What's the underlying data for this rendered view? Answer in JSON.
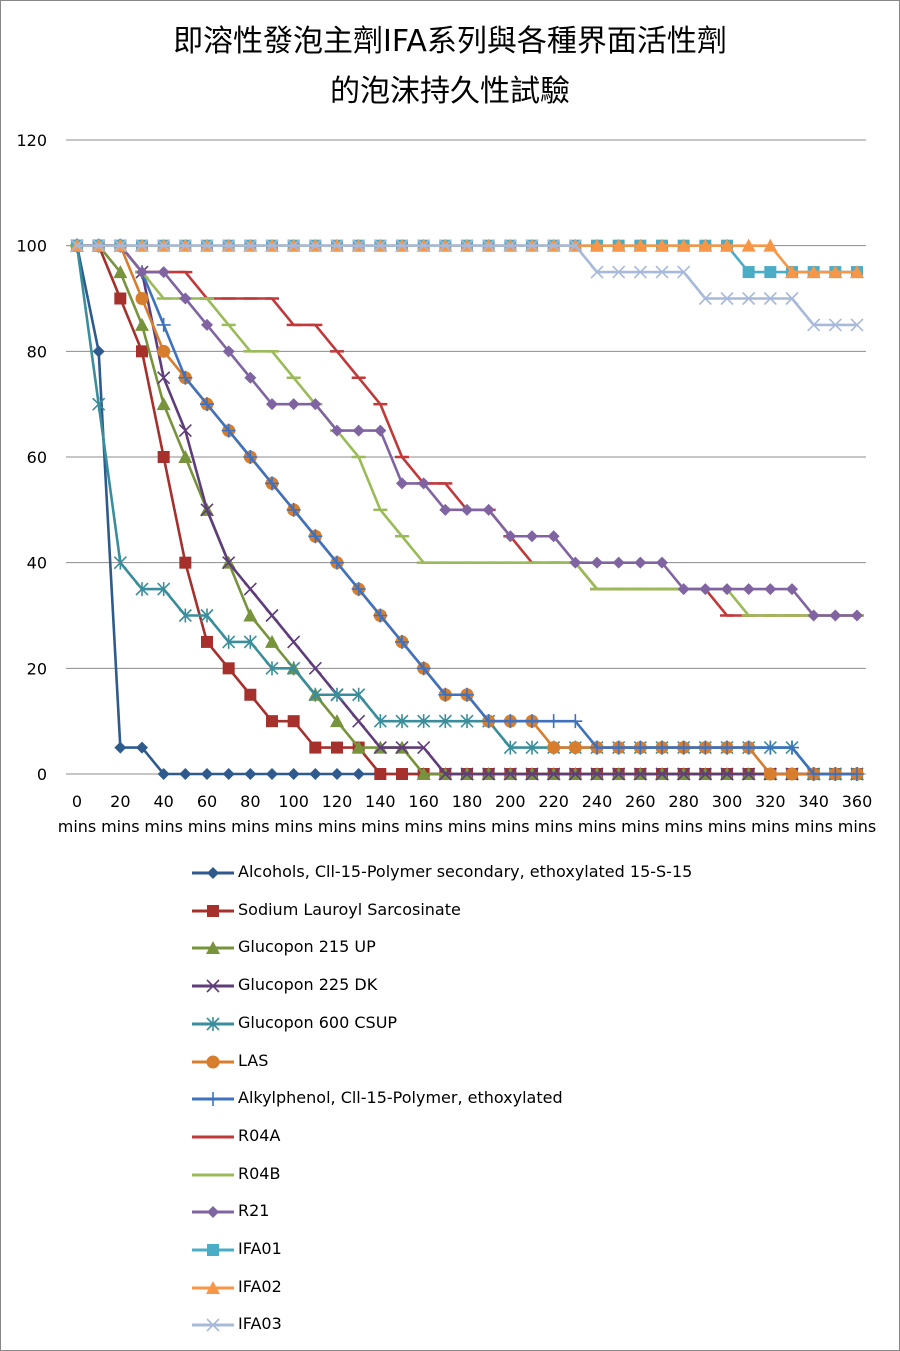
{
  "title_line1": "即溶性發泡主劑IFA系列與各種界面活性劑",
  "title_line2": "的泡沫持久性試驗",
  "chart_data": {
    "type": "line",
    "title": "即溶性發泡主劑IFA系列與各種界面活性劑的泡沫持久性試驗",
    "xlabel": "",
    "ylabel": "",
    "ylim": [
      0,
      120
    ],
    "yticks": [
      0,
      20,
      40,
      60,
      80,
      100,
      120
    ],
    "ytick_labels": [
      "0",
      "20",
      "40",
      "60",
      "80",
      "100",
      "120"
    ],
    "x": [
      0,
      10,
      20,
      30,
      40,
      50,
      60,
      70,
      80,
      90,
      100,
      110,
      120,
      130,
      140,
      150,
      160,
      170,
      180,
      190,
      200,
      210,
      220,
      230,
      240,
      250,
      260,
      270,
      280,
      290,
      300,
      310,
      320,
      330,
      340,
      350,
      360
    ],
    "xticks": [
      0,
      20,
      40,
      60,
      80,
      100,
      120,
      140,
      160,
      180,
      200,
      220,
      240,
      260,
      280,
      300,
      320,
      340,
      360
    ],
    "xtick_numbers": [
      "0",
      "20",
      "40",
      "60",
      "80",
      "100",
      "120",
      "140",
      "160",
      "180",
      "200",
      "220",
      "240",
      "260",
      "280",
      "300",
      "320",
      "340",
      "360"
    ],
    "xtick_unit": "mins",
    "grid": true,
    "legend_position": "bottom",
    "series": [
      {
        "name": "Alcohols, Cll-15-Polymer secondary, ethoxylated 15-S-15",
        "color": "#2E5A8E",
        "marker": "diamond",
        "values": [
          100,
          80,
          5,
          5,
          0,
          0,
          0,
          0,
          0,
          0,
          0,
          0,
          0,
          0,
          0,
          0,
          0,
          0,
          0,
          0,
          0,
          0,
          0,
          0,
          0,
          0,
          0,
          0,
          0,
          0,
          0,
          0,
          0,
          0,
          0,
          0,
          0
        ]
      },
      {
        "name": "Sodium Lauroyl Sarcosinate",
        "color": "#A5302C",
        "marker": "square",
        "values": [
          100,
          100,
          90,
          80,
          60,
          40,
          25,
          20,
          15,
          10,
          10,
          5,
          5,
          5,
          0,
          0,
          0,
          0,
          0,
          0,
          0,
          0,
          0,
          0,
          0,
          0,
          0,
          0,
          0,
          0,
          0,
          0,
          0,
          0,
          0,
          0,
          0
        ]
      },
      {
        "name": "Glucopon 215 UP",
        "color": "#77933C",
        "marker": "triangle",
        "values": [
          100,
          100,
          95,
          85,
          70,
          60,
          50,
          40,
          30,
          25,
          20,
          15,
          10,
          5,
          5,
          5,
          0,
          0,
          0,
          0,
          0,
          0,
          0,
          0,
          0,
          0,
          0,
          0,
          0,
          0,
          0,
          0,
          0,
          0,
          0,
          0,
          0
        ]
      },
      {
        "name": "Glucopon 225 DK",
        "color": "#5E3D7A",
        "marker": "x",
        "values": [
          100,
          100,
          100,
          95,
          75,
          65,
          50,
          40,
          35,
          30,
          25,
          20,
          15,
          10,
          5,
          5,
          5,
          0,
          0,
          0,
          0,
          0,
          0,
          0,
          0,
          0,
          0,
          0,
          0,
          0,
          0,
          0,
          0,
          0,
          0,
          0,
          0
        ]
      },
      {
        "name": "Glucopon 600 CSUP",
        "color": "#3A8E9B",
        "marker": "star",
        "values": [
          100,
          70,
          40,
          35,
          35,
          30,
          30,
          25,
          25,
          20,
          20,
          15,
          15,
          15,
          10,
          10,
          10,
          10,
          10,
          10,
          5,
          5,
          5,
          5,
          5,
          5,
          5,
          5,
          5,
          5,
          5,
          5,
          5,
          5,
          0,
          0,
          0
        ]
      },
      {
        "name": "LAS",
        "color": "#D77D2E",
        "marker": "circle",
        "values": [
          100,
          100,
          100,
          90,
          80,
          75,
          70,
          65,
          60,
          55,
          50,
          45,
          40,
          35,
          30,
          25,
          20,
          15,
          15,
          10,
          10,
          10,
          5,
          5,
          5,
          5,
          5,
          5,
          5,
          5,
          5,
          5,
          0,
          0,
          0,
          0,
          0
        ]
      },
      {
        "name": "Alkylphenol, Cll-15-Polymer, ethoxylated",
        "color": "#3E72BF",
        "marker": "plus",
        "values": [
          100,
          100,
          100,
          95,
          85,
          75,
          70,
          65,
          60,
          55,
          50,
          45,
          40,
          35,
          30,
          25,
          20,
          15,
          15,
          10,
          10,
          10,
          10,
          10,
          5,
          5,
          5,
          5,
          5,
          5,
          5,
          5,
          5,
          5,
          0,
          0,
          0
        ]
      },
      {
        "name": "R04A",
        "color": "#C0393B",
        "marker": "dash",
        "values": [
          100,
          100,
          100,
          95,
          95,
          95,
          90,
          90,
          90,
          90,
          85,
          85,
          80,
          75,
          70,
          60,
          55,
          55,
          50,
          50,
          45,
          40,
          40,
          40,
          35,
          35,
          35,
          35,
          35,
          35,
          30,
          30,
          30,
          30,
          30,
          30,
          30
        ]
      },
      {
        "name": "R04B",
        "color": "#9BBB59",
        "marker": "dash",
        "values": [
          100,
          100,
          100,
          95,
          90,
          90,
          90,
          85,
          80,
          80,
          75,
          70,
          65,
          60,
          50,
          45,
          40,
          40,
          40,
          40,
          40,
          40,
          40,
          40,
          35,
          35,
          35,
          35,
          35,
          35,
          35,
          30,
          30,
          30,
          30,
          30,
          30
        ]
      },
      {
        "name": "R21",
        "color": "#8064A2",
        "marker": "diamond",
        "values": [
          100,
          100,
          100,
          95,
          95,
          90,
          85,
          80,
          75,
          70,
          70,
          70,
          65,
          65,
          65,
          55,
          55,
          50,
          50,
          50,
          45,
          45,
          45,
          40,
          40,
          40,
          40,
          40,
          35,
          35,
          35,
          35,
          35,
          35,
          30,
          30,
          30
        ]
      },
      {
        "name": "IFA01",
        "color": "#4BACC6",
        "marker": "square",
        "values": [
          100,
          100,
          100,
          100,
          100,
          100,
          100,
          100,
          100,
          100,
          100,
          100,
          100,
          100,
          100,
          100,
          100,
          100,
          100,
          100,
          100,
          100,
          100,
          100,
          100,
          100,
          100,
          100,
          100,
          100,
          100,
          95,
          95,
          95,
          95,
          95,
          95
        ]
      },
      {
        "name": "IFA02",
        "color": "#F79646",
        "marker": "triangle",
        "values": [
          100,
          100,
          100,
          100,
          100,
          100,
          100,
          100,
          100,
          100,
          100,
          100,
          100,
          100,
          100,
          100,
          100,
          100,
          100,
          100,
          100,
          100,
          100,
          100,
          100,
          100,
          100,
          100,
          100,
          100,
          100,
          100,
          100,
          95,
          95,
          95,
          95
        ]
      },
      {
        "name": "IFA03",
        "color": "#A8B9DA",
        "marker": "x",
        "values": [
          100,
          100,
          100,
          100,
          100,
          100,
          100,
          100,
          100,
          100,
          100,
          100,
          100,
          100,
          100,
          100,
          100,
          100,
          100,
          100,
          100,
          100,
          100,
          100,
          95,
          95,
          95,
          95,
          95,
          90,
          90,
          90,
          90,
          90,
          85,
          85,
          85
        ]
      }
    ]
  }
}
